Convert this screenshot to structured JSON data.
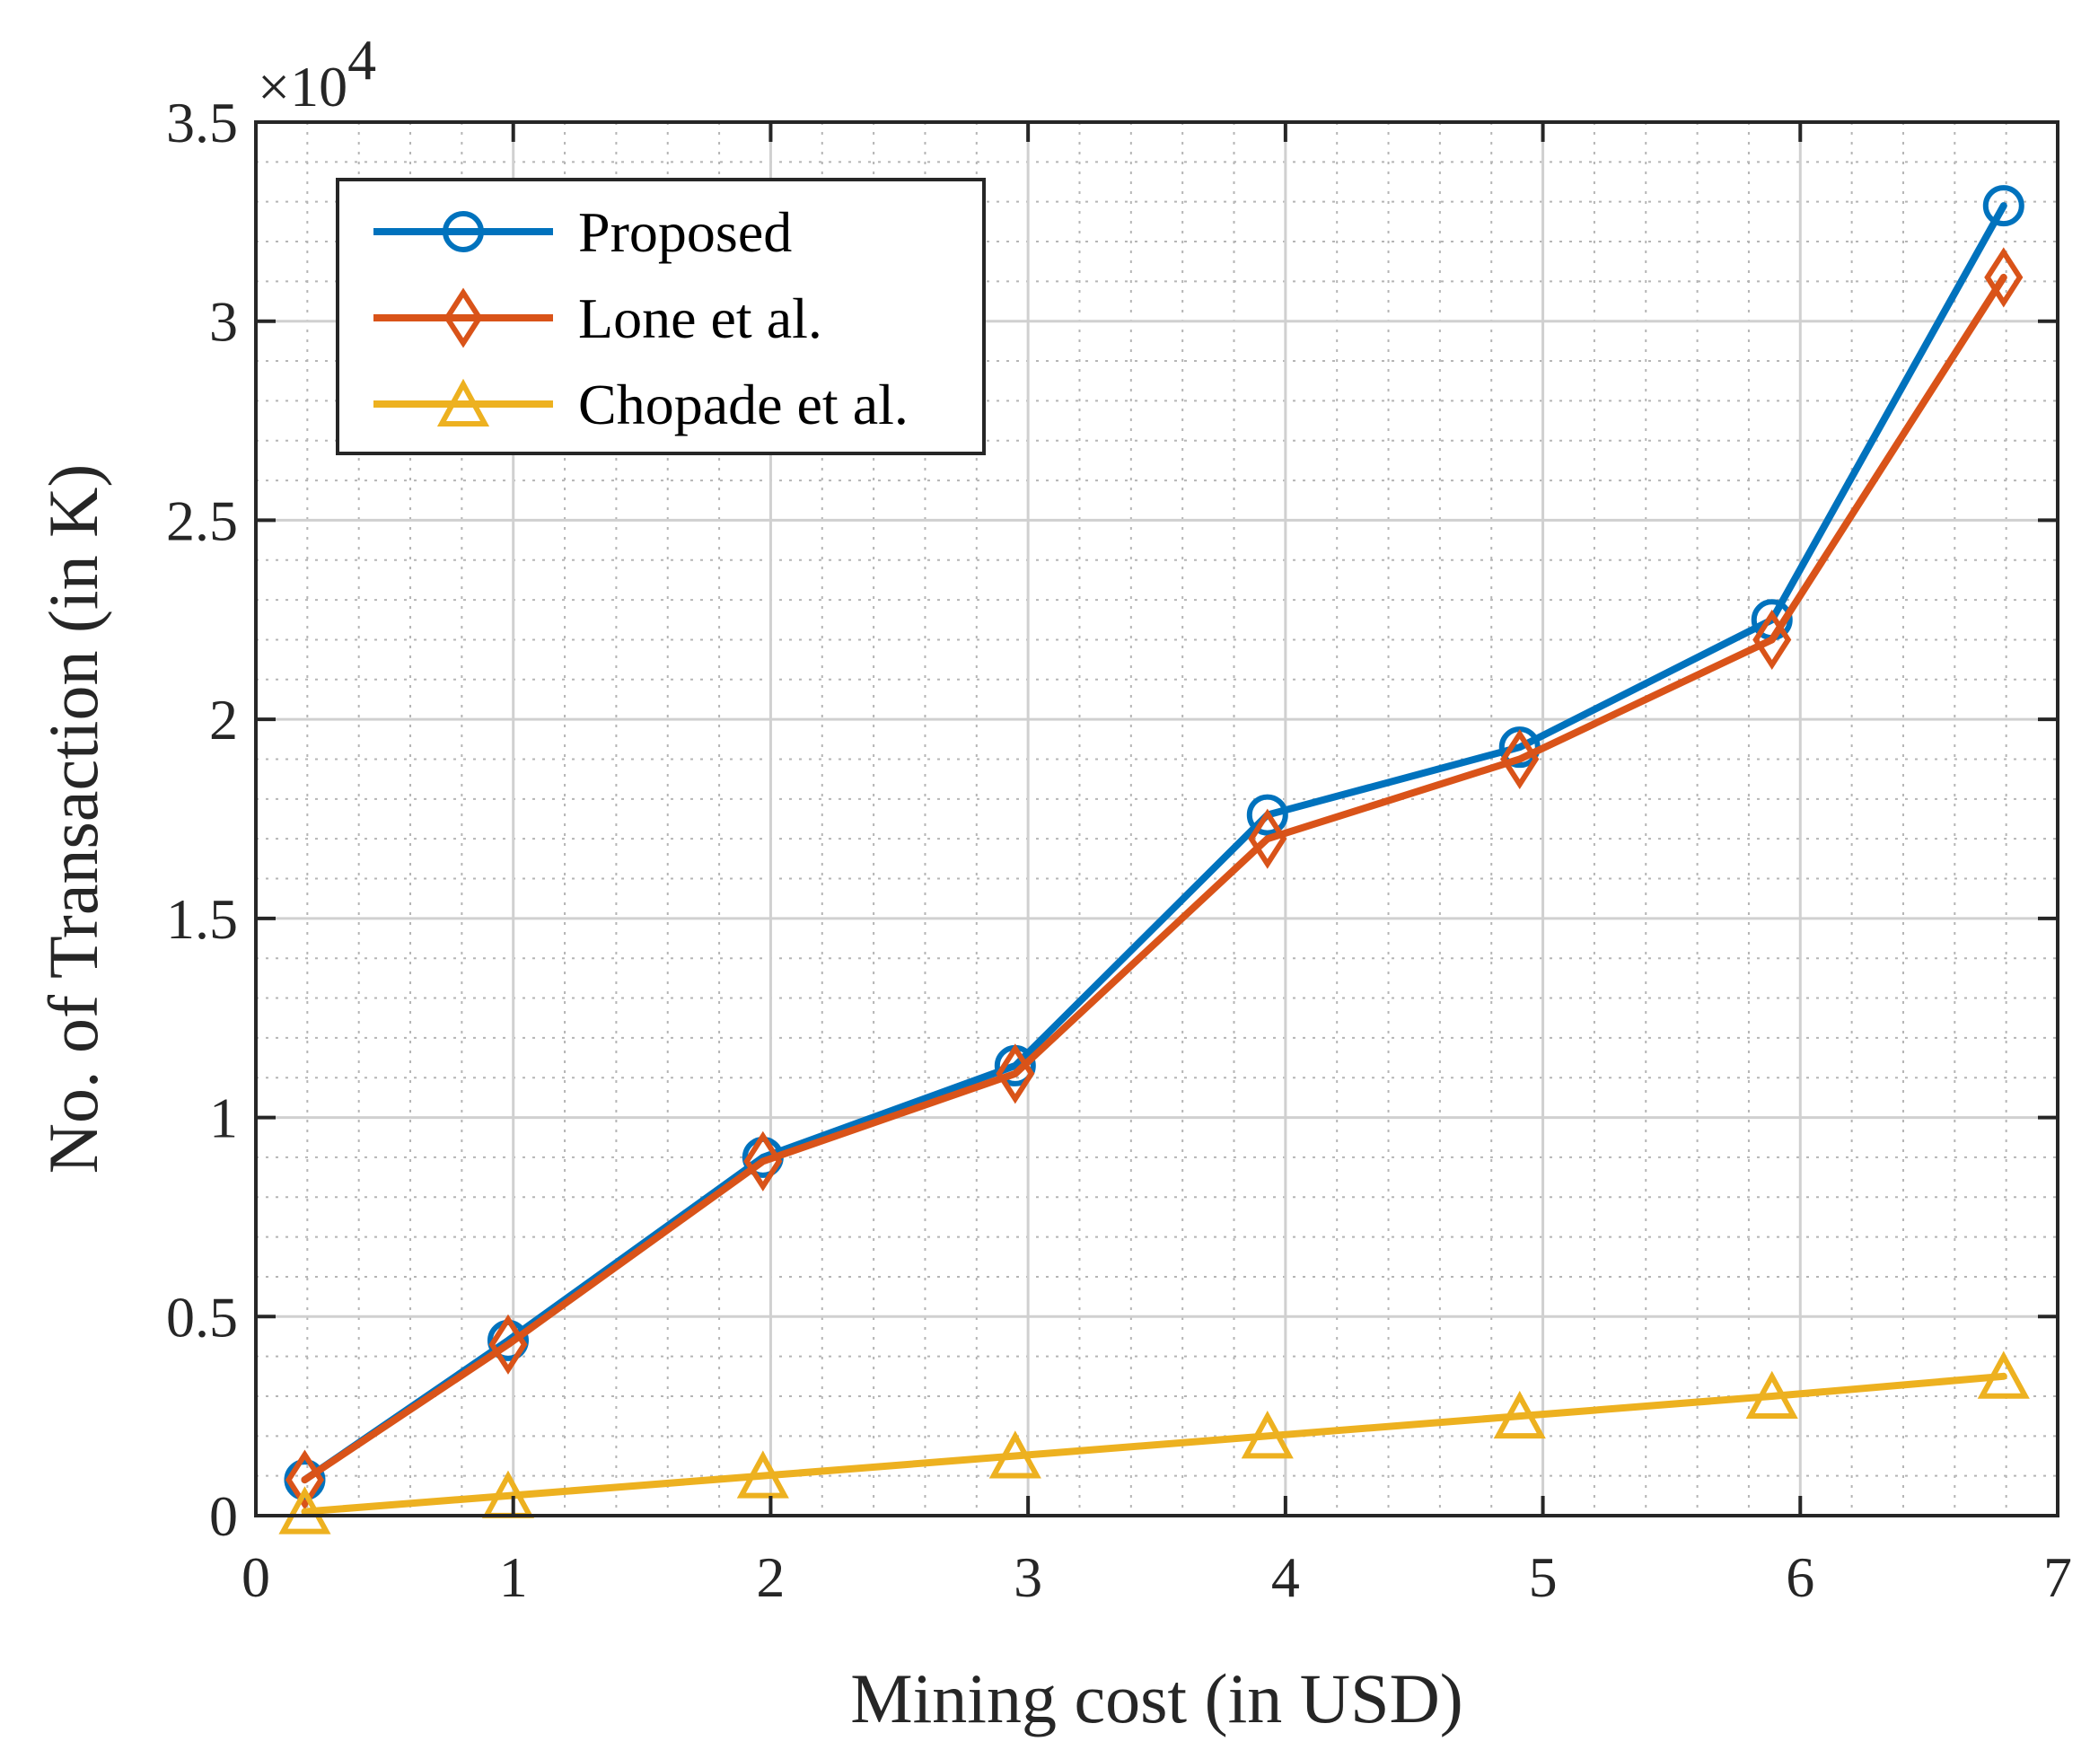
{
  "chart_data": {
    "type": "line",
    "title": "",
    "xlabel": "Mining cost (in USD)",
    "ylabel": "No. of Transaction (in K)",
    "xlim": [
      0,
      7
    ],
    "ylim": [
      0,
      35000
    ],
    "xticks": [
      0,
      1,
      2,
      3,
      4,
      5,
      6,
      7
    ],
    "yticks": [
      0,
      5000,
      10000,
      15000,
      20000,
      25000,
      30000,
      35000
    ],
    "ytick_labels": [
      "0",
      "0.5",
      "1",
      "1.5",
      "2",
      "2.5",
      "3",
      "3.5"
    ],
    "xtick_labels": [
      "0",
      "1",
      "2",
      "3",
      "4",
      "5",
      "6",
      "7"
    ],
    "y_multiplier": "×10",
    "y_multiplier_exp": "4",
    "grid": true,
    "minor_grid": true,
    "legend_location": "top-left",
    "series": [
      {
        "name": "Proposed",
        "color": "#0072BD",
        "marker": "circle",
        "x": [
          0.19,
          0.98,
          1.97,
          2.95,
          3.93,
          4.91,
          5.89,
          6.79
        ],
        "values": [
          900,
          4400,
          9000,
          11300,
          17600,
          19300,
          22500,
          32900
        ]
      },
      {
        "name": "Lone et al.",
        "color": "#D95319",
        "marker": "diamond",
        "x": [
          0.19,
          0.98,
          1.97,
          2.95,
          3.93,
          4.91,
          5.89,
          6.79
        ],
        "values": [
          900,
          4300,
          8900,
          11100,
          17000,
          19000,
          22000,
          31100
        ]
      },
      {
        "name": "Chopade et al.",
        "color": "#EDB120",
        "marker": "triangle",
        "x": [
          0.19,
          0.98,
          1.97,
          2.95,
          3.93,
          4.91,
          5.89,
          6.79
        ],
        "values": [
          100,
          500,
          1000,
          1500,
          2000,
          2500,
          3000,
          3500
        ]
      }
    ]
  }
}
